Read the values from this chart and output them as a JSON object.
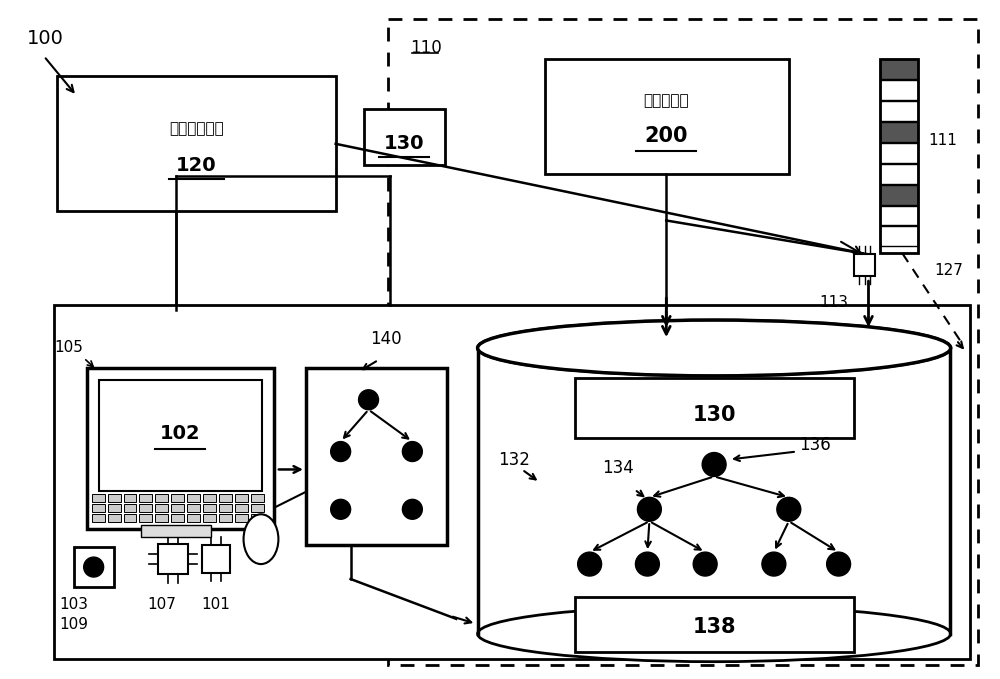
{
  "bg_color": "#ffffff",
  "fig_width": 10.0,
  "fig_height": 6.79,
  "dpi": 100,
  "label_100": "100",
  "label_110": "110",
  "label_120": "120",
  "label_130_top": "130",
  "label_130_db": "130",
  "label_138": "138",
  "label_140": "140",
  "label_200": "200",
  "label_102": "102",
  "label_111": "111",
  "label_113": "113",
  "label_127": "127",
  "label_132": "132",
  "label_134": "134",
  "label_136": "136",
  "label_105": "105",
  "label_103": "103",
  "label_107": "107",
  "label_101": "101",
  "label_109": "109",
  "text_120": "医学成像设备",
  "text_200": "方法或过程"
}
